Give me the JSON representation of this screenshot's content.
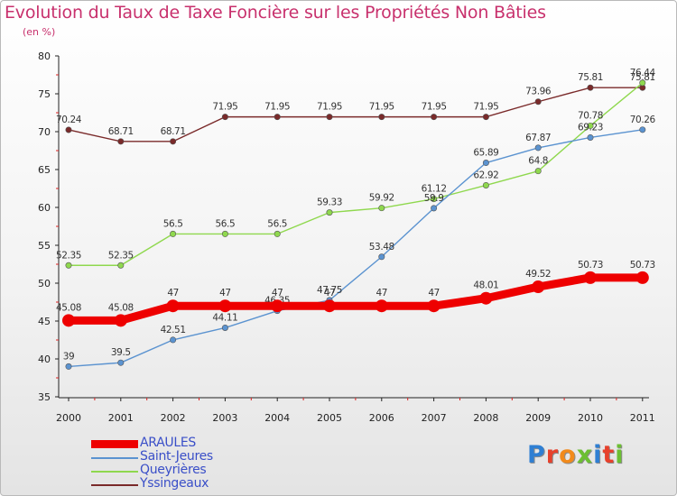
{
  "title": "Evolution du Taux de Taxe Foncière sur les Propriétés Non Bâties",
  "unit_label": "(en %)",
  "logo": {
    "text": "Proxiti",
    "colors": [
      "#2f7fd3",
      "#e7412c",
      "#f28a1b",
      "#6cbf32",
      "#2f7fd3",
      "#e7412c",
      "#6cbf32"
    ]
  },
  "chart_data": {
    "type": "line",
    "title": "Evolution du Taux de Taxe Foncière sur les Propriétés Non Bâties",
    "xlabel": "",
    "ylabel": "(en %)",
    "categories": [
      "2000",
      "2001",
      "2002",
      "2003",
      "2004",
      "2005",
      "2006",
      "2007",
      "2008",
      "2009",
      "2010",
      "2011"
    ],
    "ylim": [
      35,
      80
    ],
    "yticks": [
      35,
      40,
      45,
      50,
      55,
      60,
      65,
      70,
      75,
      80
    ],
    "grid": false,
    "legend_position": "bottom-left",
    "series": [
      {
        "name": "Yssingeaux",
        "color": "#7a2a2a",
        "width": "thin",
        "values": [
          70.24,
          68.71,
          68.71,
          71.95,
          71.95,
          71.95,
          71.95,
          71.95,
          71.95,
          73.96,
          75.81,
          75.81
        ],
        "labels": [
          "70.24",
          "68.71",
          "68.71",
          "71.95",
          "71.95",
          "71.95",
          "71.95",
          "71.95",
          "71.95",
          "73.96",
          "75.81",
          "75.81"
        ]
      },
      {
        "name": "Queyrières",
        "color": "#8fd84e",
        "width": "thin",
        "values": [
          52.35,
          52.35,
          56.5,
          56.5,
          56.5,
          59.33,
          59.92,
          61.12,
          62.92,
          64.8,
          70.78,
          76.44
        ],
        "labels": [
          "52.35",
          "52.35",
          "56.5",
          "56.5",
          "56.5",
          "59.33",
          "59.92",
          "61.12",
          "62.92",
          "64.8",
          "70.78",
          "76.44"
        ]
      },
      {
        "name": "Saint-Jeures",
        "color": "#5b93d0",
        "width": "thin",
        "values": [
          39,
          39.5,
          42.51,
          44.11,
          46.35,
          47.75,
          53.48,
          59.9,
          65.89,
          67.87,
          69.23,
          70.26
        ],
        "labels": [
          "39",
          "39.5",
          "42.51",
          "44.11",
          "46.35",
          "47.75",
          "53.48",
          "59.9",
          "65.89",
          "67.87",
          "69.23",
          "70.26"
        ]
      },
      {
        "name": "ARAULES",
        "color": "#ee0000",
        "width": "thick",
        "values": [
          45.08,
          45.08,
          47,
          47,
          47,
          47,
          47,
          47,
          48.01,
          49.52,
          50.73,
          50.73
        ],
        "labels": [
          "45.08",
          "45.08",
          "47",
          "47",
          "47",
          "47",
          "47",
          "47",
          "48.01",
          "49.52",
          "50.73",
          "50.73"
        ]
      }
    ]
  },
  "legend": [
    {
      "name": "ARAULES",
      "color": "#ee0000",
      "thick": true
    },
    {
      "name": "Saint-Jeures",
      "color": "#5b93d0",
      "thick": false
    },
    {
      "name": "Queyrières",
      "color": "#8fd84e",
      "thick": false
    },
    {
      "name": "Yssingeaux",
      "color": "#7a2a2a",
      "thick": false
    }
  ]
}
